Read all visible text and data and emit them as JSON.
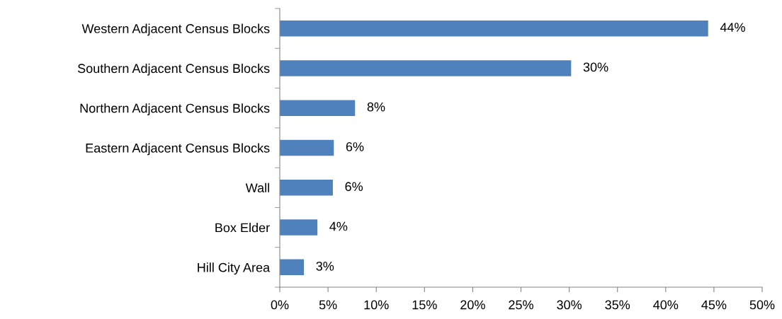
{
  "chart_data": {
    "type": "bar",
    "orientation": "horizontal",
    "categories": [
      "Western Adjacent Census Blocks",
      "Southern Adjacent Census Blocks",
      "Northern Adjacent Census Blocks",
      "Eastern Adjacent Census Blocks",
      "Wall",
      "Box Elder",
      "Hill City Area"
    ],
    "values": [
      44.4,
      30.2,
      7.8,
      5.6,
      5.5,
      3.9,
      2.5
    ],
    "value_labels": [
      "44%",
      "30%",
      "8%",
      "6%",
      "6%",
      "4%",
      "3%"
    ],
    "color": "#4f81bd",
    "xlim": [
      0,
      50
    ],
    "xticks": [
      {
        "value": 0,
        "label": "0%"
      },
      {
        "value": 5,
        "label": "5%"
      },
      {
        "value": 10,
        "label": "10%"
      },
      {
        "value": 15,
        "label": "15%"
      },
      {
        "value": 20,
        "label": "20%"
      },
      {
        "value": 25,
        "label": "25%"
      },
      {
        "value": 30,
        "label": "30%"
      },
      {
        "value": 35,
        "label": "35%"
      },
      {
        "value": 40,
        "label": "40%"
      },
      {
        "value": 45,
        "label": "45%"
      },
      {
        "value": 50,
        "label": "50%"
      }
    ],
    "grid": false,
    "legend": false
  }
}
